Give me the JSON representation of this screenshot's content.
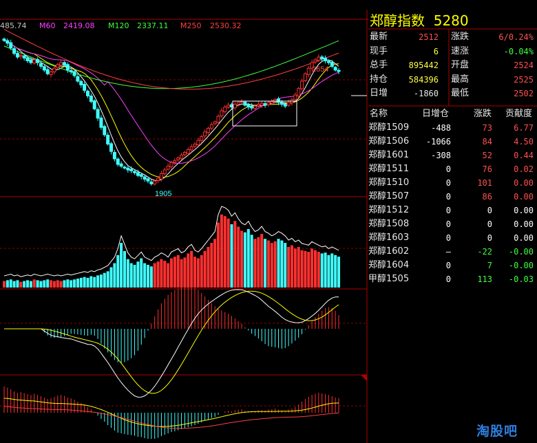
{
  "ma_labels": [
    {
      "text": "485.74",
      "color": "#c0c0c0"
    },
    {
      "text": "M60",
      "color": "#ff40ff"
    },
    {
      "text": "2419.08",
      "color": "#ff40ff"
    },
    {
      "text": "M120",
      "color": "#40ff40"
    },
    {
      "text": "2337.11",
      "color": "#40ff40"
    },
    {
      "text": "M250",
      "color": "#ff4040"
    },
    {
      "text": "2530.32",
      "color": "#ff4040"
    }
  ],
  "panel": {
    "title": "郑醇指数",
    "code": "5280",
    "quotes": [
      {
        "label": "最新",
        "value": "2512",
        "color": "#ff5050"
      },
      {
        "label": "涨跌",
        "value": "6/0.24%",
        "color": "#ff5050"
      },
      {
        "label": "现手",
        "value": "6",
        "color": "#ffff40"
      },
      {
        "label": "速涨",
        "value": "-0.04%",
        "color": "#40ff40"
      },
      {
        "label": "总手",
        "value": "895442",
        "color": "#ffff40"
      },
      {
        "label": "开盘",
        "value": "2524",
        "color": "#ff5050"
      },
      {
        "label": "持仓",
        "value": "584396",
        "color": "#ffff40"
      },
      {
        "label": "最高",
        "value": "2525",
        "color": "#ff5050"
      },
      {
        "label": "日增",
        "value": "-1860",
        "color": "#e8e8e8"
      },
      {
        "label": "最低",
        "value": "2502",
        "color": "#ff5050"
      }
    ],
    "headers": [
      "名称",
      "日增仓",
      "涨跌",
      "贡献度"
    ],
    "rows": [
      {
        "name": "郑醇1509",
        "oi": "-488",
        "chg": "73",
        "contrib": "6.77",
        "chg_color": "#ff5050",
        "contrib_color": "#ff5050"
      },
      {
        "name": "郑醇1506",
        "oi": "-1066",
        "chg": "84",
        "contrib": "4.50",
        "chg_color": "#ff5050",
        "contrib_color": "#ff5050"
      },
      {
        "name": "郑醇1601",
        "oi": "-308",
        "chg": "52",
        "contrib": "0.44",
        "chg_color": "#ff5050",
        "contrib_color": "#ff5050"
      },
      {
        "name": "郑醇1511",
        "oi": "0",
        "chg": "76",
        "contrib": "0.02",
        "chg_color": "#ff5050",
        "contrib_color": "#ff5050"
      },
      {
        "name": "郑醇1510",
        "oi": "0",
        "chg": "101",
        "contrib": "0.00",
        "chg_color": "#ff5050",
        "contrib_color": "#ff5050"
      },
      {
        "name": "郑醇1507",
        "oi": "0",
        "chg": "86",
        "contrib": "0.00",
        "chg_color": "#ff5050",
        "contrib_color": "#ff5050"
      },
      {
        "name": "郑醇1512",
        "oi": "0",
        "chg": "0",
        "contrib": "0.00",
        "chg_color": "#ffffff",
        "contrib_color": "#ffffff"
      },
      {
        "name": "郑醇1508",
        "oi": "0",
        "chg": "0",
        "contrib": "0.00",
        "chg_color": "#ffffff",
        "contrib_color": "#ffffff"
      },
      {
        "name": "郑醇1603",
        "oi": "0",
        "chg": "0",
        "contrib": "0.00",
        "chg_color": "#ffffff",
        "contrib_color": "#ffffff"
      },
      {
        "name": "郑醇1602",
        "oi": "—",
        "chg": "-22",
        "contrib": "-0.00",
        "chg_color": "#40ff40",
        "contrib_color": "#40ff40"
      },
      {
        "name": "郑醇1604",
        "oi": "0",
        "chg": "7",
        "contrib": "-0.00",
        "chg_color": "#40ff40",
        "contrib_color": "#40ff40"
      },
      {
        "name": "甲醇1505",
        "oi": "0",
        "chg": "113",
        "contrib": "-0.03",
        "chg_color": "#40ff40",
        "contrib_color": "#40ff40"
      }
    ]
  },
  "watermark": "淘股吧",
  "chart_data": {
    "type": "candlestick",
    "price_annotations": {
      "high_label": "2654",
      "low_label": "1905"
    },
    "price_range": [
      1850,
      2750
    ],
    "series_colors": {
      "up": "#ff3030",
      "down": "#40ffff",
      "ma5": "#ffffff",
      "ma10": "#ffff00",
      "ma20": "#ff40ff",
      "ma60": "#40ff40",
      "ma120": "#ff4040"
    },
    "closes": [
      2680,
      2665,
      2640,
      2610,
      2590,
      2600,
      2585,
      2570,
      2560,
      2575,
      2560,
      2540,
      2520,
      2500,
      2510,
      2530,
      2550,
      2560,
      2545,
      2520,
      2510,
      2490,
      2460,
      2440,
      2410,
      2380,
      2350,
      2310,
      2260,
      2210,
      2170,
      2120,
      2080,
      2040,
      2010,
      2000,
      1990,
      1980,
      1975,
      1965,
      1950,
      1945,
      1930,
      1920,
      1905,
      1920,
      1935,
      1960,
      1980,
      2000,
      2020,
      2030,
      2045,
      2060,
      2075,
      2090,
      2105,
      2120,
      2140,
      2160,
      2185,
      2205,
      2225,
      2240,
      2270,
      2300,
      2320,
      2330,
      2320,
      2335,
      2345,
      2350,
      2330,
      2320,
      2315,
      2325,
      2335,
      2340,
      2330,
      2345,
      2350,
      2360,
      2345,
      2335,
      2325,
      2345,
      2360,
      2385,
      2420,
      2460,
      2500,
      2530,
      2560,
      2575,
      2590,
      2580,
      2570,
      2560,
      2540,
      2520,
      2512
    ],
    "volume_range": [
      0,
      100
    ],
    "volumes": [
      8,
      9,
      10,
      8,
      9,
      7,
      8,
      9,
      8,
      10,
      9,
      8,
      9,
      10,
      9,
      8,
      9,
      8,
      9,
      10,
      9,
      10,
      11,
      12,
      13,
      12,
      14,
      13,
      15,
      16,
      18,
      20,
      25,
      30,
      40,
      55,
      45,
      35,
      30,
      28,
      32,
      36,
      30,
      28,
      26,
      30,
      32,
      35,
      33,
      30,
      36,
      38,
      40,
      35,
      37,
      42,
      45,
      38,
      36,
      40,
      45,
      50,
      55,
      60,
      80,
      90,
      88,
      85,
      78,
      82,
      75,
      70,
      68,
      72,
      65,
      60,
      62,
      66,
      60,
      58,
      55,
      57,
      60,
      58,
      55,
      50,
      52,
      48,
      50,
      46,
      45,
      44,
      48,
      46,
      44,
      42,
      43,
      40,
      42,
      40,
      38
    ],
    "macd": {
      "zero_line": 0,
      "note": "DIF/DEA lines with histogram"
    },
    "ind2": {
      "note": "secondary indicator histogram with two lines"
    }
  }
}
